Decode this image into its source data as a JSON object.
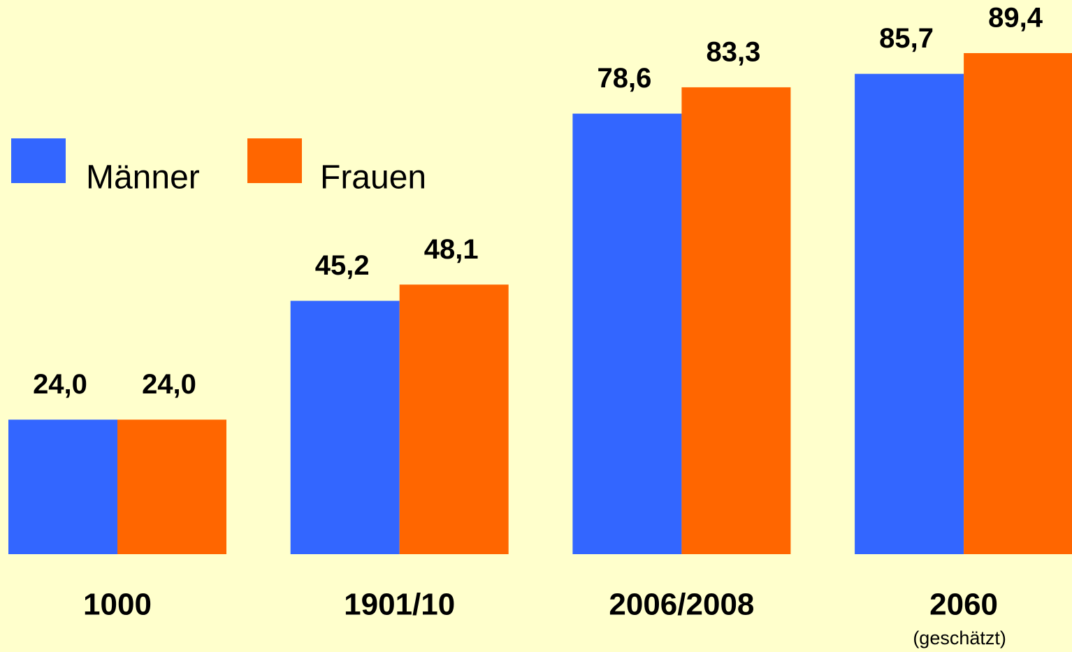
{
  "chart_data": {
    "type": "bar",
    "categories": [
      "1000",
      "1901/10",
      "2006/2008",
      "2060"
    ],
    "annotation": "(geschätzt)",
    "series": [
      {
        "name": "Männer",
        "color": "#3366ff",
        "values": [
          24.0,
          45.2,
          78.6,
          85.7
        ],
        "value_labels": [
          "24,0",
          "45,2",
          "78,6",
          "85,7"
        ]
      },
      {
        "name": "Frauen",
        "color": "#ff6600",
        "values": [
          24.0,
          48.1,
          83.3,
          89.4
        ],
        "value_labels": [
          "24,0",
          "48,1",
          "83,3",
          "89,4"
        ]
      }
    ],
    "grid": false
  }
}
